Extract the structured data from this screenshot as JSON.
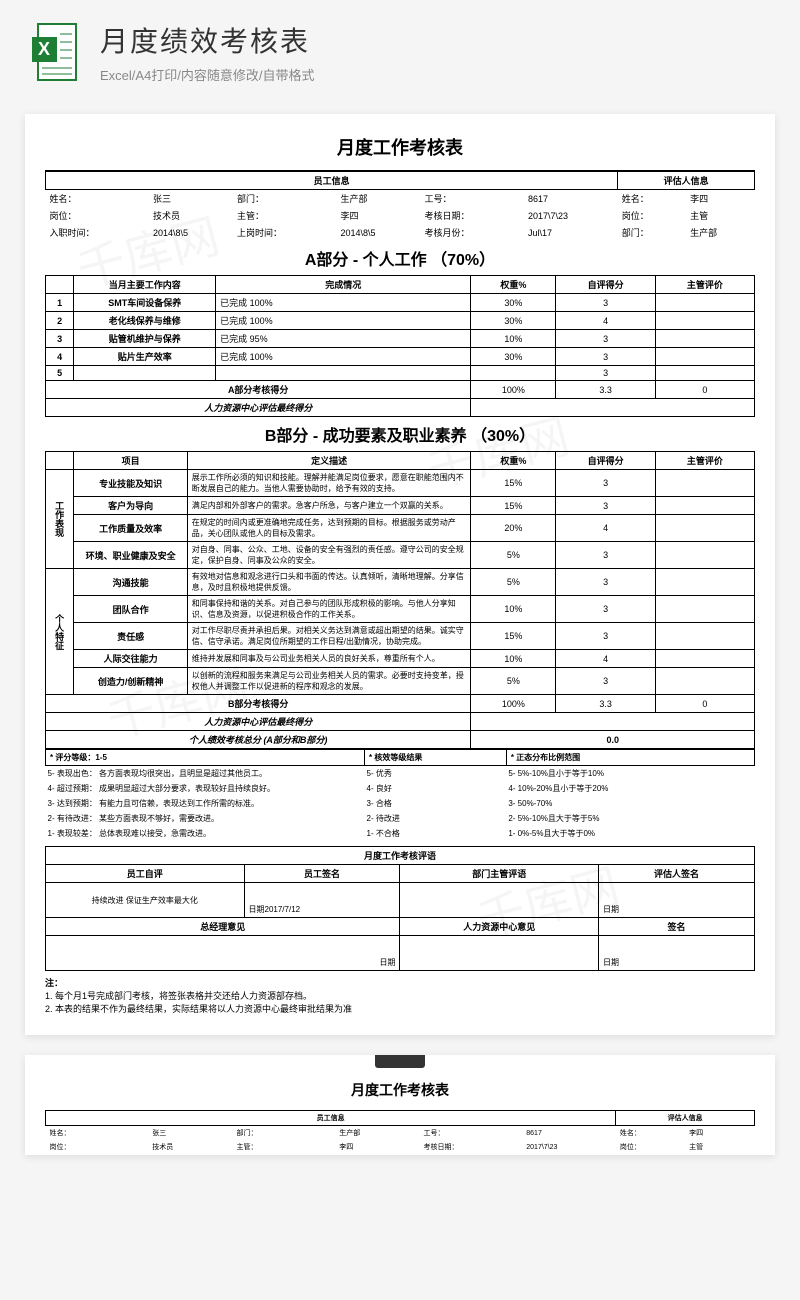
{
  "header": {
    "title": "月度绩效考核表",
    "subtitle": "Excel/A4打印/内容随意修改/自带格式"
  },
  "doc": {
    "title": "月度工作考核表",
    "emp_section": "员工信息",
    "eval_section": "评估人信息",
    "emp": {
      "name_label": "姓名：",
      "name": "张三",
      "dept_label": "部门：",
      "dept": "生产部",
      "id_label": "工号：",
      "id": "8617",
      "pos_label": "岗位：",
      "pos": "技术员",
      "mgr_label": "主管：",
      "mgr": "李四",
      "date_label": "考核日期：",
      "date": "2017\\7\\23",
      "hire_label": "入职时间：",
      "hire": "2014\\8\\5",
      "start_label": "上岗时间：",
      "start": "2014\\8\\5",
      "month_label": "考核月份：",
      "month": "Jul\\17"
    },
    "evaluator": {
      "name_label": "姓名：",
      "name": "李四",
      "pos_label": "岗位：",
      "pos": "主管",
      "dept_label": "部门：",
      "dept": "生产部"
    },
    "partA": {
      "title": "A部分 - 个人工作 （70%）",
      "cols": {
        "idx": "",
        "task": "当月主要工作内容",
        "status": "完成情况",
        "weight": "权重%",
        "self": "自评得分",
        "mgr": "主管评价"
      },
      "rows": [
        {
          "idx": "1",
          "task": "SMT车间设备保养",
          "status": "已完成 100%",
          "weight": "30%",
          "self": "3",
          "mgr": ""
        },
        {
          "idx": "2",
          "task": "老化线保养与维修",
          "status": "已完成 100%",
          "weight": "30%",
          "self": "4",
          "mgr": ""
        },
        {
          "idx": "3",
          "task": "贴管机维护与保养",
          "status": "已完成 95%",
          "weight": "10%",
          "self": "3",
          "mgr": ""
        },
        {
          "idx": "4",
          "task": "贴片生产效率",
          "status": "已完成 100%",
          "weight": "30%",
          "self": "3",
          "mgr": ""
        },
        {
          "idx": "5",
          "task": "",
          "status": "",
          "weight": "",
          "self": "3",
          "mgr": ""
        }
      ],
      "subtotal_label": "A部分考核得分",
      "subtotal": {
        "weight": "100%",
        "self": "3.3",
        "mgr": "0"
      },
      "hr_label": "人力资源中心评估最终得分"
    },
    "partB": {
      "title": "B部分 - 成功要素及职业素养 （30%）",
      "cols": {
        "cat": "",
        "item": "项目",
        "desc": "定义描述",
        "weight": "权重%",
        "self": "自评得分",
        "mgr": "主管评价"
      },
      "cat1": "工作表现",
      "cat2": "个人特征",
      "rows": [
        {
          "item": "专业技能及知识",
          "desc": "展示工作所必须的知识和技能。理解并能满足岗位要求，愿意在职能范围内不断发展自己的能力。当他人需要协助时，给予有效的支持。",
          "weight": "15%",
          "self": "3"
        },
        {
          "item": "客户为导向",
          "desc": "满足内部和外部客户的需求。急客户所急，与客户建立一个双赢的关系。",
          "weight": "15%",
          "self": "3"
        },
        {
          "item": "工作质量及效率",
          "desc": "在规定的时间内或更准确地完成任务，达到预期的目标。根据服务或劳动产品，关心团队或他人的目标及需求。",
          "weight": "20%",
          "self": "4"
        },
        {
          "item": "环境、职业健康及安全",
          "desc": "对自身、同事、公众、工地、设备的安全有强烈的责任感。遵守公司的安全规定，保护自身、同事及公众的安全。",
          "weight": "5%",
          "self": "3"
        },
        {
          "item": "沟通技能",
          "desc": "有效地对信息和观念进行口头和书面的传达。认真倾听，清晰地理解。分享信息，及时且积极地提供反馈。",
          "weight": "5%",
          "self": "3"
        },
        {
          "item": "团队合作",
          "desc": "和同事保持和谐的关系。对自己参与的团队形成积极的影响。与他人分享知识、信息及资源，以促进积极合作的工作关系。",
          "weight": "10%",
          "self": "3"
        },
        {
          "item": "责任感",
          "desc": "对工作尽职尽责并承担后果。对相关义务达到满意或超出期望的结果。诚实守信、信守承诺。满足岗位所期望的工作日程/出勤情况，协助完成。",
          "weight": "15%",
          "self": "3"
        },
        {
          "item": "人际交往能力",
          "desc": "维持并发展和同事及与公司业务相关人员的良好关系，尊重所有个人。",
          "weight": "10%",
          "self": "4"
        },
        {
          "item": "创造力/创新精神",
          "desc": "以创新的流程和服务来满足与公司业务相关人员的需求。必要时支持变革，授权他人并调整工作以促进新的程序和观念的发展。",
          "weight": "5%",
          "self": "3"
        }
      ],
      "subtotal_label": "B部分考核得分",
      "subtotal": {
        "weight": "100%",
        "self": "3.3",
        "mgr": "0"
      },
      "hr_label": "人力资源中心评估最终得分",
      "total_label": "个人绩效考核总分 (A部分和B部分)",
      "total": "0.0"
    },
    "rating": {
      "scale_label": "* 评分等级：1-5",
      "result_label": "* 核效等级结果",
      "dist_label": "* 正态分布比例范围",
      "scales": [
        "5- 表现出色：  各方面表现均很突出，且明显是超过其他员工。",
        "4- 超过预期：  成果明显超过大部分要求，表现较好且持续良好。",
        "3- 达到预期：  有能力且可信赖，表现达到工作所需的标准。",
        "2- 有待改进：  某些方面表现不够好，需要改进。",
        "1- 表现较差：  总体表现难以接受，急需改进。"
      ],
      "results": [
        "5- 优秀",
        "4- 良好",
        "3- 合格",
        "2- 待改进",
        "1- 不合格"
      ],
      "dists": [
        "5- 5%-10%且小于等于10%",
        "4- 10%-20%且小于等于20%",
        "3- 50%-70%",
        "2- 5%-10%且大于等于5%",
        "1- 0%-5%且大于等于0%"
      ]
    },
    "comments": {
      "title": "月度工作考核评语",
      "emp_label": "员工自评",
      "emp_text": "持续改进 保证生产效率最大化",
      "emp_sig": "员工签名",
      "mgr_label": "部门主管评语",
      "eval_sig": "评估人签名",
      "date1": "日期2017/7/12",
      "date2": "日期",
      "date3": "日期",
      "gm_label": "总经理意见",
      "hr_label": "人力资源中心意见",
      "sig": "签名",
      "date4": "日期",
      "date5": "日期"
    },
    "notes": {
      "label": "注：",
      "n1": "1. 每个月1号完成部门考核，将签张表格并交还给人力资源部存档。",
      "n2": "2. 本表的结果不作为最终结果，实际结果将以人力资源中心最终审批结果为准"
    }
  }
}
